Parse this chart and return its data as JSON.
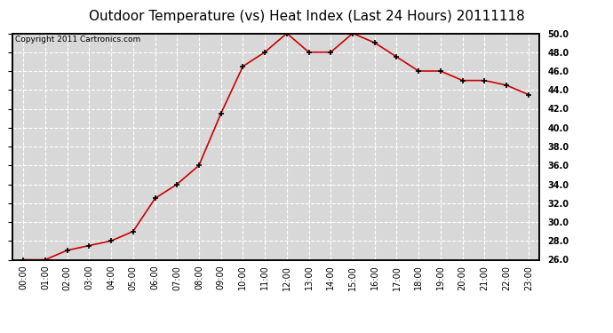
{
  "title": "Outdoor Temperature (vs) Heat Index (Last 24 Hours) 20111118",
  "copyright_text": "Copyright 2011 Cartronics.com",
  "x_labels": [
    "00:00",
    "01:00",
    "02:00",
    "03:00",
    "04:00",
    "05:00",
    "06:00",
    "07:00",
    "08:00",
    "09:00",
    "10:00",
    "11:00",
    "12:00",
    "13:00",
    "14:00",
    "15:00",
    "16:00",
    "17:00",
    "18:00",
    "19:00",
    "20:00",
    "21:00",
    "22:00",
    "23:00"
  ],
  "y_values": [
    26.0,
    26.0,
    27.0,
    27.5,
    28.0,
    29.0,
    32.5,
    34.0,
    36.0,
    41.5,
    46.5,
    48.0,
    50.0,
    48.0,
    48.0,
    50.0,
    49.0,
    47.5,
    46.0,
    46.0,
    45.0,
    45.0,
    44.5,
    43.5
  ],
  "ylim_min": 26.0,
  "ylim_max": 50.0,
  "y_ticks": [
    26.0,
    28.0,
    30.0,
    32.0,
    34.0,
    36.0,
    38.0,
    40.0,
    42.0,
    44.0,
    46.0,
    48.0,
    50.0
  ],
  "line_color": "#cc0000",
  "marker": "+",
  "marker_color": "#000000",
  "bg_color": "#ffffff",
  "plot_bg_color": "#d8d8d8",
  "grid_color": "#ffffff",
  "title_fontsize": 11,
  "tick_fontsize": 7,
  "copyright_fontsize": 6.5
}
